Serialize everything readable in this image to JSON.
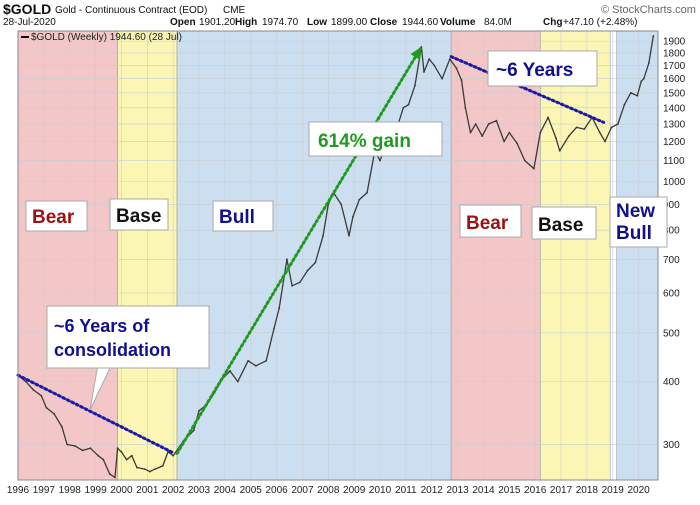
{
  "header": {
    "symbol": "$GOLD",
    "description": "Gold - Continuous Contract (EOD)",
    "exchange": "CME",
    "date": "28-Jul-2020",
    "open_label": "Open",
    "open": "1901.20",
    "high_label": "High",
    "high": "1974.70",
    "low_label": "Low",
    "low": "1899.00",
    "close_label": "Close",
    "close": "1944.60",
    "volume_label": "Volume",
    "volume": "84.0M",
    "chg_label": "Chg",
    "chg": "+47.10 (+2.48%)",
    "source": "© StockCharts.com"
  },
  "chart_data": {
    "type": "line",
    "title": "$GOLD Gold - Continuous Contract (EOD) CME",
    "legend": "$GOLD (Weekly) 1944.60 (28 Jul)",
    "y_scale": "log",
    "ylim": [
      255,
      1990
    ],
    "xlim": [
      1996.0,
      2020.75
    ],
    "y_ticks": [
      300,
      400,
      500,
      600,
      700,
      800,
      900,
      1000,
      1100,
      1200,
      1300,
      1400,
      1500,
      1600,
      1700,
      1800,
      1900
    ],
    "x_ticks": [
      1996,
      1997,
      1998,
      1999,
      2000,
      2001,
      2002,
      2003,
      2004,
      2005,
      2006,
      2007,
      2008,
      2009,
      2010,
      2011,
      2012,
      2013,
      2014,
      2015,
      2016,
      2017,
      2018,
      2019,
      2020
    ],
    "grid": true,
    "series": [
      {
        "name": "$GOLD (Weekly)",
        "x": [
          1996.0,
          1996.3,
          1996.6,
          1996.9,
          1997.1,
          1997.4,
          1997.7,
          1997.9,
          1998.2,
          1998.5,
          1998.8,
          1999.1,
          1999.3,
          1999.55,
          1999.75,
          1999.85,
          2000.0,
          2000.2,
          2000.4,
          2000.6,
          2000.9,
          2001.1,
          2001.3,
          2001.6,
          2001.8,
          2002.0,
          2002.4,
          2002.8,
          2003.0,
          2003.3,
          2003.6,
          2003.9,
          2004.2,
          2004.5,
          2004.9,
          2005.2,
          2005.6,
          2005.9,
          2006.1,
          2006.4,
          2006.6,
          2006.9,
          2007.2,
          2007.5,
          2007.8,
          2008.0,
          2008.2,
          2008.5,
          2008.8,
          2008.95,
          2009.2,
          2009.5,
          2009.8,
          2010.0,
          2010.3,
          2010.6,
          2010.9,
          2011.1,
          2011.35,
          2011.6,
          2011.7,
          2011.9,
          2012.1,
          2012.4,
          2012.7,
          2012.95,
          2013.15,
          2013.3,
          2013.5,
          2013.7,
          2013.95,
          2014.2,
          2014.5,
          2014.8,
          2015.0,
          2015.3,
          2015.6,
          2015.95,
          2016.2,
          2016.5,
          2016.8,
          2016.95,
          2017.3,
          2017.6,
          2017.9,
          2018.2,
          2018.5,
          2018.7,
          2018.95,
          2019.2,
          2019.45,
          2019.7,
          2019.95,
          2020.1,
          2020.2,
          2020.4,
          2020.57
        ],
        "values": [
          412,
          400,
          385,
          375,
          355,
          345,
          325,
          300,
          298,
          292,
          295,
          285,
          280,
          262,
          258,
          295,
          290,
          280,
          285,
          270,
          268,
          265,
          268,
          272,
          290,
          285,
          305,
          320,
          350,
          360,
          380,
          405,
          420,
          400,
          440,
          430,
          440,
          510,
          560,
          700,
          620,
          630,
          665,
          690,
          780,
          900,
          950,
          900,
          780,
          850,
          920,
          950,
          1150,
          1100,
          1200,
          1250,
          1400,
          1420,
          1550,
          1850,
          1650,
          1750,
          1700,
          1600,
          1750,
          1680,
          1590,
          1400,
          1250,
          1300,
          1230,
          1300,
          1320,
          1200,
          1250,
          1190,
          1100,
          1060,
          1250,
          1340,
          1220,
          1150,
          1230,
          1280,
          1270,
          1340,
          1250,
          1200,
          1280,
          1300,
          1420,
          1500,
          1480,
          1580,
          1600,
          1720,
          1944.6
        ]
      }
    ],
    "phases": [
      {
        "label": "Bear",
        "start": 1996.0,
        "end": 1999.85,
        "color": "#f3c7c7",
        "text_color": "#a01010"
      },
      {
        "label": "Base",
        "start": 1999.85,
        "end": 2002.15,
        "color": "#fbf6b4",
        "text_color": "#111111"
      },
      {
        "label": "Bull",
        "start": 2002.15,
        "end": 2012.75,
        "color": "#ccdff1",
        "text_color": "#10108f"
      },
      {
        "label": "Bear",
        "start": 2012.75,
        "end": 2016.2,
        "color": "#f3c7c7",
        "text_color": "#a01010"
      },
      {
        "label": "Base",
        "start": 2016.2,
        "end": 2018.9,
        "color": "#fbf6b4",
        "text_color": "#111111"
      },
      {
        "label": "New Bull",
        "start": 2019.15,
        "end": 2020.75,
        "color": "#ccdff1",
        "text_color": "#10108f"
      }
    ],
    "trendlines": [
      {
        "from": [
          1996.0,
          412
        ],
        "to": [
          2002.05,
          288
        ],
        "color": "#1a1aa8",
        "style": "dotted"
      },
      {
        "from": [
          2012.75,
          1770
        ],
        "to": [
          2018.65,
          1310
        ],
        "color": "#1a1aa8",
        "style": "dotted"
      },
      {
        "from": [
          2002.15,
          288
        ],
        "to": [
          2011.6,
          1850
        ],
        "color": "#1f9a1f",
        "style": "dotted",
        "arrow": true
      }
    ],
    "annotations": [
      {
        "text": "~6 Years of consolidation"
      },
      {
        "text": "614% gain"
      },
      {
        "text": "~6 Years"
      }
    ]
  }
}
